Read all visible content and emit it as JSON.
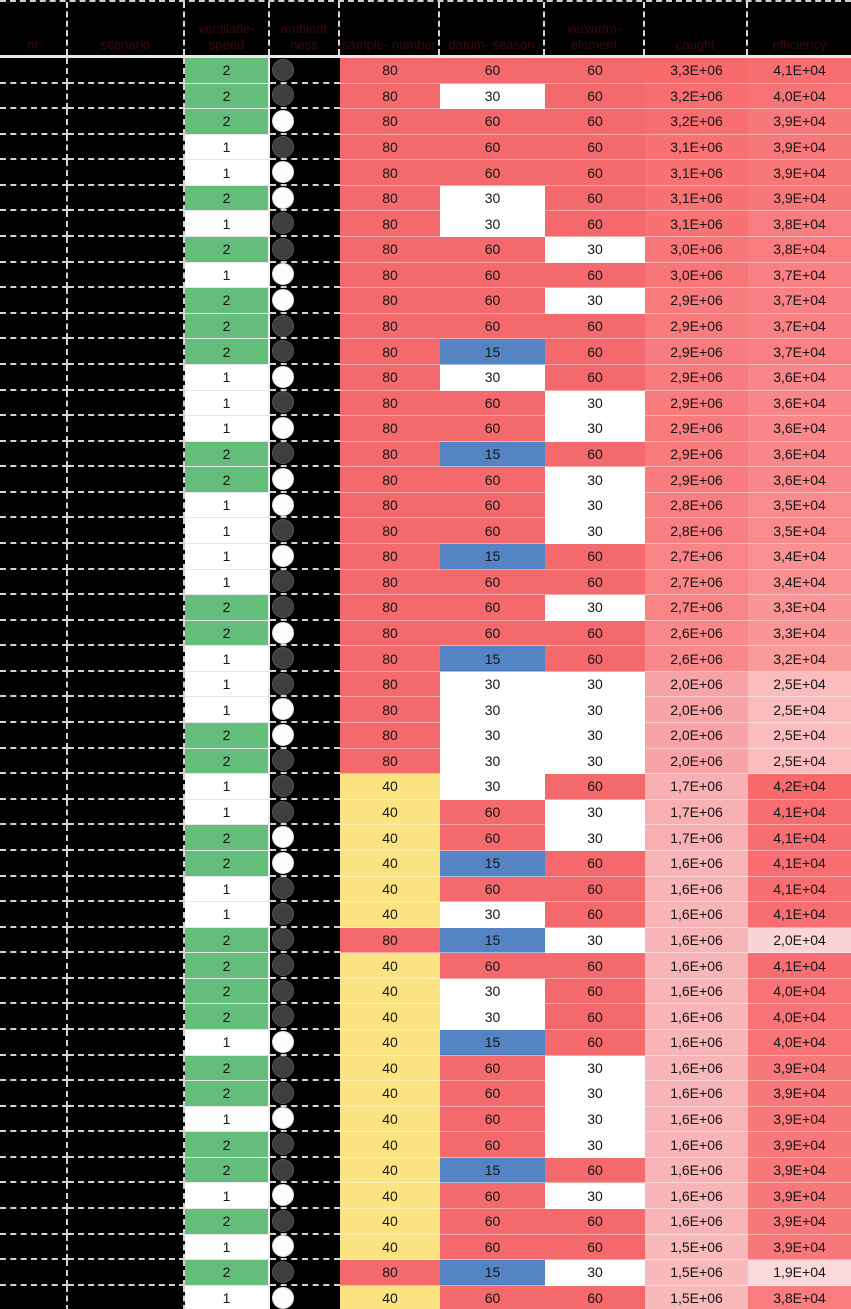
{
  "table": {
    "headers": [
      {
        "label": "nr"
      },
      {
        "label": "scenario"
      },
      {
        "label": "ventilatie- speed"
      },
      {
        "label": "ambient ness"
      },
      {
        "label": "sample- number"
      },
      {
        "label": "datum- season"
      },
      {
        "label": "verwarm- element"
      },
      {
        "label": "caught"
      },
      {
        "label": "efficiency"
      }
    ],
    "redacted_columns_note": "first two columns and header text appear blacked-out (dark red on black)"
  },
  "colors": {
    "speed_2_green": "#63BE7B",
    "speed_1_white": "#FFFFFF",
    "value_red": "#F4696C",
    "value_yellow": "#FBE381",
    "value_blue": "#5584C4",
    "value_white": "#FFFFFF",
    "dark_circle": "#3E3E3E",
    "light_circle": "#FCFCFC",
    "header_text": "#3A0B0B",
    "grid_white": "#D9D9D9",
    "caught_scale": {
      "min": 1.5,
      "max": 3.3,
      "hi": "#F8696B",
      "lo": "#F8B9BB"
    },
    "efficiency_scale": {
      "min": 1.9,
      "max": 4.2,
      "hi": "#F8696B",
      "lo": "#FBD9DA"
    }
  },
  "chart_data": {
    "type": "table",
    "columns": [
      "speed",
      "ambient_circle",
      "col5",
      "col6",
      "col7",
      "caught",
      "efficiency"
    ],
    "col5_color_map": {
      "80": "#F4696C",
      "40": "#FBE381"
    },
    "col6_color_map": {
      "60": "#F4696C",
      "30": "#FFFFFF",
      "15": "#5584C4"
    },
    "col7_color_map": {
      "60": "#F4696C",
      "30": "#FFFFFF"
    },
    "rows": [
      {
        "speed": "2",
        "circle": "dark",
        "c5": "80",
        "c6": "60",
        "c7": "60",
        "caught": "3,3E+06",
        "caught_v": 3.3,
        "eff": "4,1E+04",
        "eff_v": 4.1
      },
      {
        "speed": "2",
        "circle": "dark",
        "c5": "80",
        "c6": "30",
        "c7": "60",
        "caught": "3,2E+06",
        "caught_v": 3.2,
        "eff": "4,0E+04",
        "eff_v": 4.0
      },
      {
        "speed": "2",
        "circle": "light",
        "c5": "80",
        "c6": "60",
        "c7": "60",
        "caught": "3,2E+06",
        "caught_v": 3.2,
        "eff": "3,9E+04",
        "eff_v": 3.9
      },
      {
        "speed": "1",
        "circle": "dark",
        "c5": "80",
        "c6": "60",
        "c7": "60",
        "caught": "3,1E+06",
        "caught_v": 3.1,
        "eff": "3,9E+04",
        "eff_v": 3.9
      },
      {
        "speed": "1",
        "circle": "light",
        "c5": "80",
        "c6": "60",
        "c7": "60",
        "caught": "3,1E+06",
        "caught_v": 3.1,
        "eff": "3,9E+04",
        "eff_v": 3.9
      },
      {
        "speed": "2",
        "circle": "light",
        "c5": "80",
        "c6": "30",
        "c7": "60",
        "caught": "3,1E+06",
        "caught_v": 3.1,
        "eff": "3,9E+04",
        "eff_v": 3.9
      },
      {
        "speed": "1",
        "circle": "dark",
        "c5": "80",
        "c6": "30",
        "c7": "60",
        "caught": "3,1E+06",
        "caught_v": 3.1,
        "eff": "3,8E+04",
        "eff_v": 3.8
      },
      {
        "speed": "2",
        "circle": "dark",
        "c5": "80",
        "c6": "60",
        "c7": "30",
        "caught": "3,0E+06",
        "caught_v": 3.0,
        "eff": "3,8E+04",
        "eff_v": 3.8
      },
      {
        "speed": "1",
        "circle": "light",
        "c5": "80",
        "c6": "60",
        "c7": "60",
        "caught": "3,0E+06",
        "caught_v": 3.0,
        "eff": "3,7E+04",
        "eff_v": 3.7
      },
      {
        "speed": "2",
        "circle": "light",
        "c5": "80",
        "c6": "60",
        "c7": "30",
        "caught": "2,9E+06",
        "caught_v": 2.9,
        "eff": "3,7E+04",
        "eff_v": 3.7
      },
      {
        "speed": "2",
        "circle": "dark",
        "c5": "80",
        "c6": "60",
        "c7": "60",
        "caught": "2,9E+06",
        "caught_v": 2.9,
        "eff": "3,7E+04",
        "eff_v": 3.7
      },
      {
        "speed": "2",
        "circle": "dark",
        "c5": "80",
        "c6": "15",
        "c7": "60",
        "caught": "2,9E+06",
        "caught_v": 2.9,
        "eff": "3,7E+04",
        "eff_v": 3.7
      },
      {
        "speed": "1",
        "circle": "light",
        "c5": "80",
        "c6": "30",
        "c7": "60",
        "caught": "2,9E+06",
        "caught_v": 2.9,
        "eff": "3,6E+04",
        "eff_v": 3.6
      },
      {
        "speed": "1",
        "circle": "dark",
        "c5": "80",
        "c6": "60",
        "c7": "30",
        "caught": "2,9E+06",
        "caught_v": 2.9,
        "eff": "3,6E+04",
        "eff_v": 3.6
      },
      {
        "speed": "1",
        "circle": "light",
        "c5": "80",
        "c6": "60",
        "c7": "30",
        "caught": "2,9E+06",
        "caught_v": 2.9,
        "eff": "3,6E+04",
        "eff_v": 3.6
      },
      {
        "speed": "2",
        "circle": "dark",
        "c5": "80",
        "c6": "15",
        "c7": "60",
        "caught": "2,9E+06",
        "caught_v": 2.9,
        "eff": "3,6E+04",
        "eff_v": 3.6
      },
      {
        "speed": "2",
        "circle": "light",
        "c5": "80",
        "c6": "60",
        "c7": "30",
        "caught": "2,9E+06",
        "caught_v": 2.9,
        "eff": "3,6E+04",
        "eff_v": 3.6
      },
      {
        "speed": "1",
        "circle": "light",
        "c5": "80",
        "c6": "60",
        "c7": "30",
        "caught": "2,8E+06",
        "caught_v": 2.8,
        "eff": "3,5E+04",
        "eff_v": 3.5
      },
      {
        "speed": "1",
        "circle": "dark",
        "c5": "80",
        "c6": "60",
        "c7": "30",
        "caught": "2,8E+06",
        "caught_v": 2.8,
        "eff": "3,5E+04",
        "eff_v": 3.5
      },
      {
        "speed": "1",
        "circle": "light",
        "c5": "80",
        "c6": "15",
        "c7": "60",
        "caught": "2,7E+06",
        "caught_v": 2.7,
        "eff": "3,4E+04",
        "eff_v": 3.4
      },
      {
        "speed": "1",
        "circle": "dark",
        "c5": "80",
        "c6": "60",
        "c7": "60",
        "caught": "2,7E+06",
        "caught_v": 2.7,
        "eff": "3,4E+04",
        "eff_v": 3.4
      },
      {
        "speed": "2",
        "circle": "dark",
        "c5": "80",
        "c6": "60",
        "c7": "30",
        "caught": "2,7E+06",
        "caught_v": 2.7,
        "eff": "3,3E+04",
        "eff_v": 3.3
      },
      {
        "speed": "2",
        "circle": "light",
        "c5": "80",
        "c6": "60",
        "c7": "60",
        "caught": "2,6E+06",
        "caught_v": 2.6,
        "eff": "3,3E+04",
        "eff_v": 3.3
      },
      {
        "speed": "1",
        "circle": "dark",
        "c5": "80",
        "c6": "15",
        "c7": "60",
        "caught": "2,6E+06",
        "caught_v": 2.6,
        "eff": "3,2E+04",
        "eff_v": 3.2
      },
      {
        "speed": "1",
        "circle": "dark",
        "c5": "80",
        "c6": "30",
        "c7": "30",
        "caught": "2,0E+06",
        "caught_v": 2.0,
        "eff": "2,5E+04",
        "eff_v": 2.5
      },
      {
        "speed": "1",
        "circle": "light",
        "c5": "80",
        "c6": "30",
        "c7": "30",
        "caught": "2,0E+06",
        "caught_v": 2.0,
        "eff": "2,5E+04",
        "eff_v": 2.5
      },
      {
        "speed": "2",
        "circle": "light",
        "c5": "80",
        "c6": "30",
        "c7": "30",
        "caught": "2,0E+06",
        "caught_v": 2.0,
        "eff": "2,5E+04",
        "eff_v": 2.5
      },
      {
        "speed": "2",
        "circle": "dark",
        "c5": "80",
        "c6": "30",
        "c7": "30",
        "caught": "2,0E+06",
        "caught_v": 2.0,
        "eff": "2,5E+04",
        "eff_v": 2.5
      },
      {
        "speed": "1",
        "circle": "dark",
        "c5": "40",
        "c6": "30",
        "c7": "60",
        "caught": "1,7E+06",
        "caught_v": 1.7,
        "eff": "4,2E+04",
        "eff_v": 4.2
      },
      {
        "speed": "1",
        "circle": "dark",
        "c5": "40",
        "c6": "60",
        "c7": "30",
        "caught": "1,7E+06",
        "caught_v": 1.7,
        "eff": "4,1E+04",
        "eff_v": 4.1
      },
      {
        "speed": "2",
        "circle": "light",
        "c5": "40",
        "c6": "60",
        "c7": "30",
        "caught": "1,7E+06",
        "caught_v": 1.7,
        "eff": "4,1E+04",
        "eff_v": 4.1
      },
      {
        "speed": "2",
        "circle": "light",
        "c5": "40",
        "c6": "15",
        "c7": "60",
        "caught": "1,6E+06",
        "caught_v": 1.6,
        "eff": "4,1E+04",
        "eff_v": 4.1
      },
      {
        "speed": "1",
        "circle": "dark",
        "c5": "40",
        "c6": "60",
        "c7": "60",
        "caught": "1,6E+06",
        "caught_v": 1.6,
        "eff": "4,1E+04",
        "eff_v": 4.1
      },
      {
        "speed": "1",
        "circle": "dark",
        "c5": "40",
        "c6": "30",
        "c7": "60",
        "caught": "1,6E+06",
        "caught_v": 1.6,
        "eff": "4,1E+04",
        "eff_v": 4.1
      },
      {
        "speed": "2",
        "circle": "dark",
        "c5": "80",
        "c6": "15",
        "c7": "30",
        "caught": "1,6E+06",
        "caught_v": 1.6,
        "eff": "2,0E+04",
        "eff_v": 2.0
      },
      {
        "speed": "2",
        "circle": "dark",
        "c5": "40",
        "c6": "60",
        "c7": "60",
        "caught": "1,6E+06",
        "caught_v": 1.6,
        "eff": "4,1E+04",
        "eff_v": 4.1
      },
      {
        "speed": "2",
        "circle": "dark",
        "c5": "40",
        "c6": "30",
        "c7": "60",
        "caught": "1,6E+06",
        "caught_v": 1.6,
        "eff": "4,0E+04",
        "eff_v": 4.0
      },
      {
        "speed": "2",
        "circle": "dark",
        "c5": "40",
        "c6": "30",
        "c7": "60",
        "caught": "1,6E+06",
        "caught_v": 1.6,
        "eff": "4,0E+04",
        "eff_v": 4.0
      },
      {
        "speed": "1",
        "circle": "light",
        "c5": "40",
        "c6": "15",
        "c7": "60",
        "caught": "1,6E+06",
        "caught_v": 1.6,
        "eff": "4,0E+04",
        "eff_v": 4.0
      },
      {
        "speed": "2",
        "circle": "dark",
        "c5": "40",
        "c6": "60",
        "c7": "30",
        "caught": "1,6E+06",
        "caught_v": 1.6,
        "eff": "3,9E+04",
        "eff_v": 3.9
      },
      {
        "speed": "2",
        "circle": "dark",
        "c5": "40",
        "c6": "60",
        "c7": "30",
        "caught": "1,6E+06",
        "caught_v": 1.6,
        "eff": "3,9E+04",
        "eff_v": 3.9
      },
      {
        "speed": "1",
        "circle": "light",
        "c5": "40",
        "c6": "60",
        "c7": "30",
        "caught": "1,6E+06",
        "caught_v": 1.6,
        "eff": "3,9E+04",
        "eff_v": 3.9
      },
      {
        "speed": "2",
        "circle": "dark",
        "c5": "40",
        "c6": "60",
        "c7": "30",
        "caught": "1,6E+06",
        "caught_v": 1.6,
        "eff": "3,9E+04",
        "eff_v": 3.9
      },
      {
        "speed": "2",
        "circle": "dark",
        "c5": "40",
        "c6": "15",
        "c7": "60",
        "caught": "1,6E+06",
        "caught_v": 1.6,
        "eff": "3,9E+04",
        "eff_v": 3.9
      },
      {
        "speed": "1",
        "circle": "light",
        "c5": "40",
        "c6": "60",
        "c7": "30",
        "caught": "1,6E+06",
        "caught_v": 1.6,
        "eff": "3,9E+04",
        "eff_v": 3.9
      },
      {
        "speed": "2",
        "circle": "dark",
        "c5": "40",
        "c6": "60",
        "c7": "60",
        "caught": "1,6E+06",
        "caught_v": 1.6,
        "eff": "3,9E+04",
        "eff_v": 3.9
      },
      {
        "speed": "1",
        "circle": "light",
        "c5": "40",
        "c6": "60",
        "c7": "60",
        "caught": "1,5E+06",
        "caught_v": 1.5,
        "eff": "3,9E+04",
        "eff_v": 3.9
      },
      {
        "speed": "2",
        "circle": "dark",
        "c5": "80",
        "c6": "15",
        "c7": "30",
        "caught": "1,5E+06",
        "caught_v": 1.5,
        "eff": "1,9E+04",
        "eff_v": 1.9
      },
      {
        "speed": "1",
        "circle": "light",
        "c5": "40",
        "c6": "60",
        "c7": "60",
        "caught": "1,5E+06",
        "caught_v": 1.5,
        "eff": "3,8E+04",
        "eff_v": 3.8
      }
    ]
  }
}
